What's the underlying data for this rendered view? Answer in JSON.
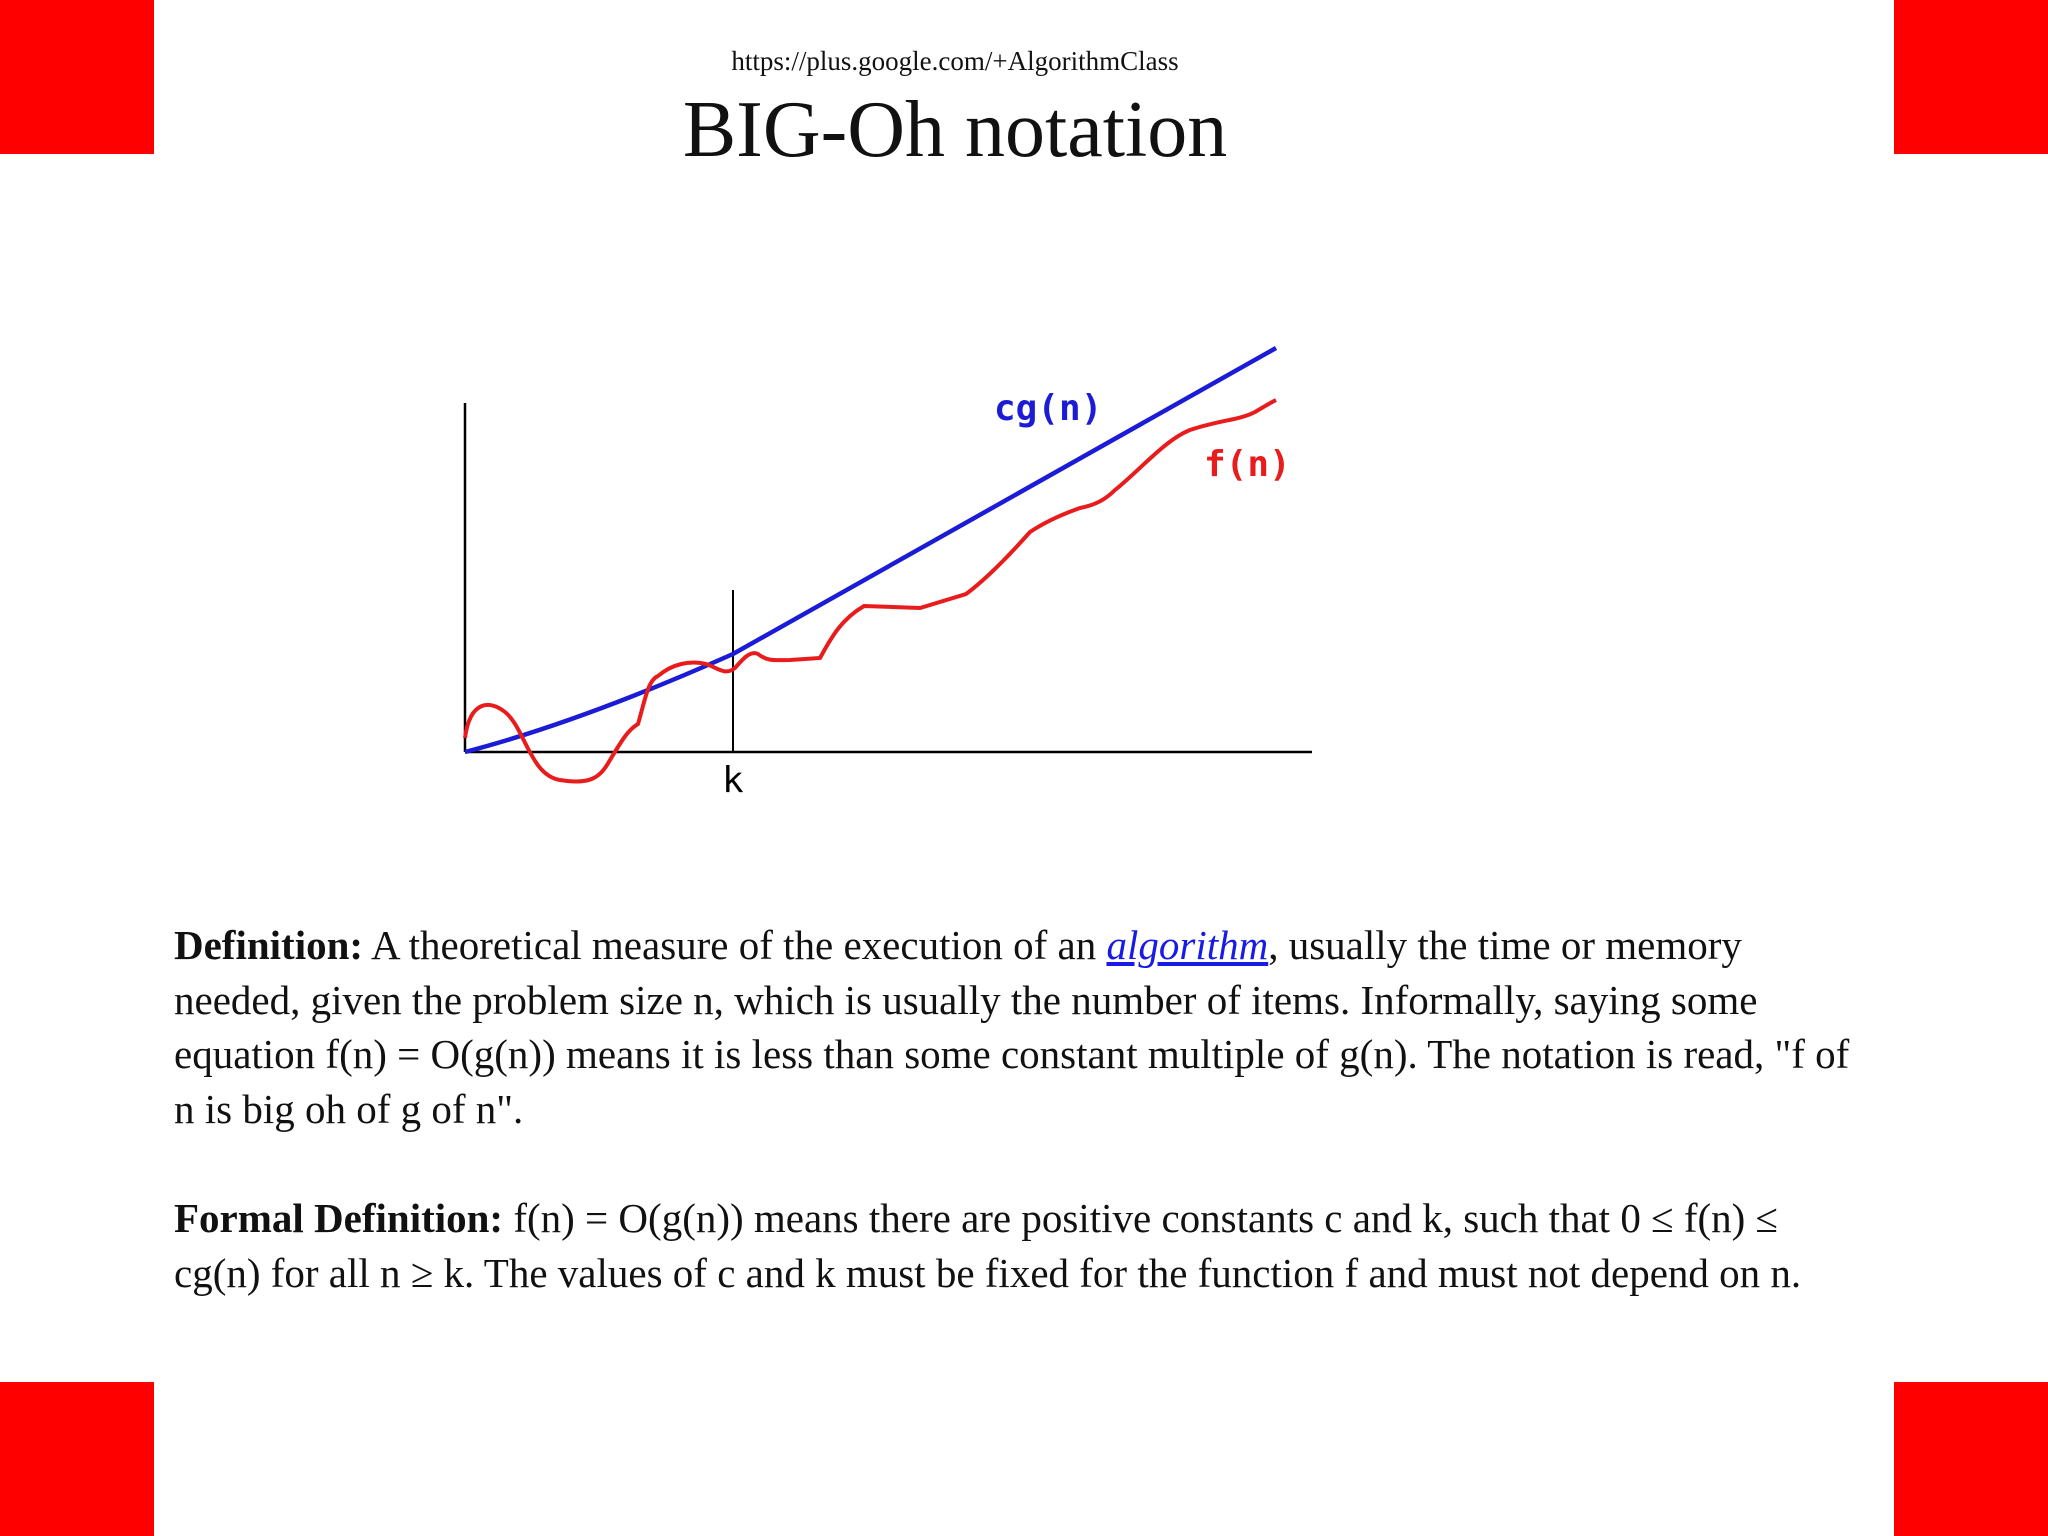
{
  "header": {
    "url": "https://plus.google.com/+AlgorithmClass",
    "title": "BIG-Oh notation"
  },
  "graph": {
    "cg_label": "cg(n)",
    "f_label": "f(n)",
    "k_label": "k",
    "colors": {
      "cg": "#1c1cd6",
      "f": "#e81c1c",
      "axes": "#000000"
    }
  },
  "definition": {
    "label": "Definition:",
    "text_before": "A theoretical measure of the execution of an",
    "link_text": "algorithm",
    "text_after": ", usually the time or memory needed, given the problem size n, which is usually the number of items. Informally, saying some equation f(n) = O(g(n)) means it is less than some constant multiple of g(n). The notation is read, \"f of n is big oh of g of n\"."
  },
  "formal_definition": {
    "label": "Formal Definition:",
    "text": "f(n) = O(g(n)) means there are positive constants c and k, such that 0 ≤ f(n) ≤ cg(n) for all n ≥ k. The values of c and k must be fixed for the function f and must not depend on n."
  },
  "decor": {
    "corner_color": "#ff0000"
  }
}
